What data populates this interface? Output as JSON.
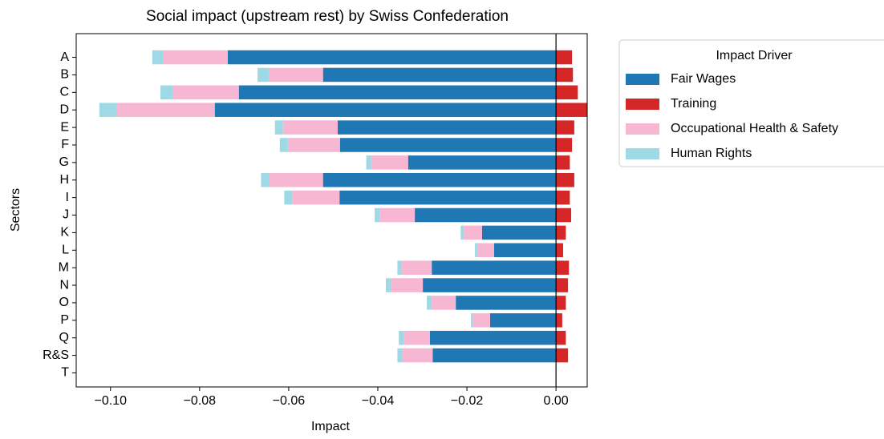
{
  "chart_data": {
    "type": "barh_stacked",
    "title": "Social impact (upstream rest) by Swiss Confederation",
    "xlabel": "Impact",
    "ylabel": "Sectors",
    "categories": [
      "A",
      "B",
      "C",
      "D",
      "E",
      "F",
      "G",
      "H",
      "I",
      "J",
      "K",
      "L",
      "M",
      "N",
      "O",
      "P",
      "Q",
      "R&S",
      "T"
    ],
    "series": [
      {
        "name": "Fair Wages",
        "color": "#1f77b4",
        "values": [
          -0.0737,
          -0.0523,
          -0.0712,
          -0.0766,
          -0.049,
          -0.0485,
          -0.0332,
          -0.0523,
          -0.0486,
          -0.0317,
          -0.0166,
          -0.0139,
          -0.0279,
          -0.0299,
          -0.0225,
          -0.0148,
          -0.0283,
          -0.0277,
          0
        ]
      },
      {
        "name": "Training",
        "color": "#d62728",
        "values": [
          0.0036,
          0.0038,
          0.0049,
          0.007,
          0.0041,
          0.0036,
          0.0031,
          0.0041,
          0.0031,
          0.0034,
          0.0022,
          0.0016,
          0.0029,
          0.0027,
          0.0022,
          0.0014,
          0.0022,
          0.0027,
          0
        ]
      },
      {
        "name": "Occupational Health & Safety",
        "color": "#f7b6d2",
        "values": [
          -0.0144,
          -0.0122,
          -0.0149,
          -0.0221,
          -0.0123,
          -0.0117,
          -0.0083,
          -0.0121,
          -0.0106,
          -0.0079,
          -0.0041,
          -0.0038,
          -0.0068,
          -0.0072,
          -0.0054,
          -0.0038,
          -0.0059,
          -0.0068,
          0
        ]
      },
      {
        "name": "Human Rights",
        "color": "#9edae5",
        "values": [
          -0.0025,
          -0.0025,
          -0.0027,
          -0.0038,
          -0.0018,
          -0.0018,
          -0.0011,
          -0.0018,
          -0.0018,
          -0.0011,
          -0.0007,
          -0.0005,
          -0.0009,
          -0.0011,
          -0.0011,
          -0.0005,
          -0.0011,
          -0.0011,
          0
        ]
      }
    ],
    "legend_title": "Impact Driver",
    "legend": "outside upper right",
    "xlim": [
      -0.1077,
      0.007
    ],
    "xticks": [
      {
        "value": -0.1,
        "label": "−0.10"
      },
      {
        "value": -0.08,
        "label": "−0.08"
      },
      {
        "value": -0.06,
        "label": "−0.06"
      },
      {
        "value": -0.04,
        "label": "−0.04"
      },
      {
        "value": -0.02,
        "label": "−0.02"
      },
      {
        "value": 0,
        "label": "0.00"
      }
    ],
    "zero_line": true
  }
}
